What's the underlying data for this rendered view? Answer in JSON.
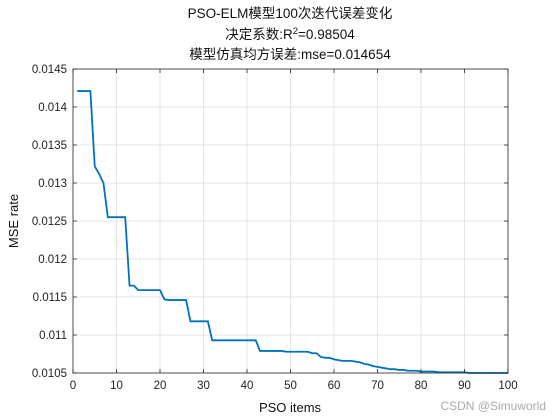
{
  "chart_data": {
    "type": "line",
    "title_lines": [
      "PSO-ELM模型100次迭代误差变化",
      "决定系数:R",
      "模型仿真均方误差:mse=0.014654"
    ],
    "r2": {
      "sup": "2",
      "value": "=0.98504"
    },
    "xlabel": "PSO items",
    "ylabel": "MSE rate",
    "xlim": [
      0,
      100
    ],
    "ylim": [
      0.0105,
      0.0145
    ],
    "x_ticks": [
      "0",
      "10",
      "20",
      "30",
      "40",
      "50",
      "60",
      "70",
      "80",
      "90",
      "100"
    ],
    "y_ticks": [
      "0.0105",
      "0.011",
      "0.0115",
      "0.012",
      "0.0125",
      "0.013",
      "0.0135",
      "0.014",
      "0.0145"
    ],
    "grid": true,
    "line_color": "#0072BD",
    "series": [
      {
        "x": [
          1,
          4,
          5,
          6,
          7,
          8,
          9,
          10,
          11,
          12,
          13,
          14,
          15,
          16,
          17,
          18,
          19,
          20,
          21,
          22,
          23,
          24,
          25,
          26,
          27,
          28,
          29,
          30,
          31,
          32,
          33,
          34,
          35,
          36,
          37,
          38,
          39,
          40,
          41,
          42,
          43,
          44,
          45,
          46,
          47,
          48,
          49,
          50,
          51,
          52,
          53,
          54,
          55,
          56,
          57,
          58,
          59,
          60,
          61,
          62,
          63,
          64,
          65,
          66,
          67,
          68,
          69,
          70,
          71,
          72,
          73,
          74,
          75,
          76,
          77,
          78,
          79,
          80,
          81,
          82,
          83,
          84,
          85,
          86,
          87,
          88,
          89,
          90,
          91,
          92,
          93,
          94,
          95,
          96,
          97,
          98,
          99,
          100
        ],
        "y": [
          0.01421,
          0.01421,
          0.01322,
          0.01312,
          0.013,
          0.01255,
          0.01255,
          0.01255,
          0.01255,
          0.01255,
          0.01165,
          0.01165,
          0.01159,
          0.01159,
          0.01159,
          0.01159,
          0.01159,
          0.01159,
          0.01147,
          0.01146,
          0.01146,
          0.01146,
          0.01146,
          0.01146,
          0.01118,
          0.01118,
          0.01118,
          0.01118,
          0.01118,
          0.01093,
          0.01093,
          0.01093,
          0.01093,
          0.01093,
          0.01093,
          0.01093,
          0.01093,
          0.01093,
          0.01093,
          0.01093,
          0.01079,
          0.01079,
          0.01079,
          0.01079,
          0.01079,
          0.01079,
          0.01078,
          0.01078,
          0.01078,
          0.01078,
          0.01078,
          0.01078,
          0.01076,
          0.01076,
          0.01071,
          0.0107,
          0.0107,
          0.01068,
          0.01067,
          0.01066,
          0.01066,
          0.01066,
          0.01065,
          0.01064,
          0.01062,
          0.01061,
          0.01059,
          0.01058,
          0.01057,
          0.01056,
          0.01055,
          0.01055,
          0.01054,
          0.01054,
          0.01053,
          0.01053,
          0.01053,
          0.01052,
          0.01052,
          0.01052,
          0.01052,
          0.01051,
          0.01051,
          0.01051,
          0.01051,
          0.01051,
          0.01051,
          0.01051,
          0.0105,
          0.0105,
          0.0105,
          0.0105,
          0.0105,
          0.0105,
          0.0105,
          0.0105,
          0.0105,
          0.0105
        ]
      }
    ]
  },
  "watermark": "CSDN @Simuworld"
}
